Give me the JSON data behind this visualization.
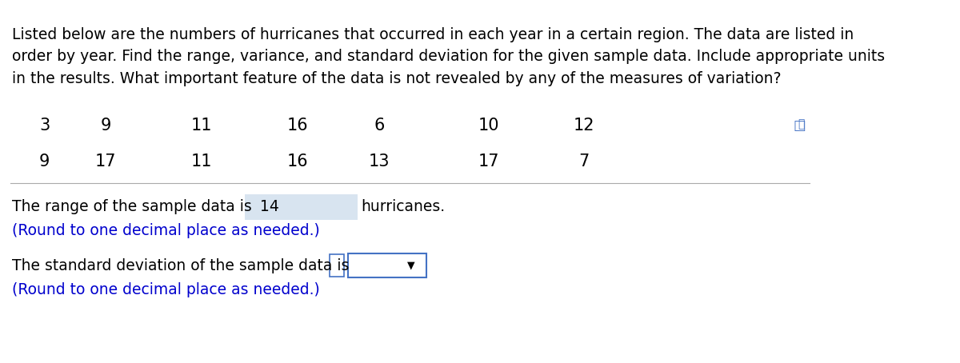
{
  "paragraph_text": "Listed below are the numbers of hurricanes that occurred in each year in a certain region. The data are listed in\norder by year. Find the range, variance, and standard deviation for the given sample data. Include appropriate units\nin the results. What important feature of the data is not revealed by any of the measures of variation?",
  "row1": [
    "3",
    "9",
    "11",
    "16",
    "6",
    "10",
    "12"
  ],
  "row2": [
    "9",
    "17",
    "11",
    "16",
    "13",
    "17",
    "7"
  ],
  "range_text_before": "The range of the sample data is ",
  "range_value": "14",
  "range_text_after": " hurricanes.",
  "range_note": "(Round to one decimal place as needed.)",
  "std_text_before": "The standard deviation of the sample data is",
  "std_note": "(Round to one decimal place as needed.)",
  "font_color_black": "#000000",
  "font_color_blue": "#0000CD",
  "highlight_color": "#D8E4F0",
  "box_border_blue": "#4472C4",
  "bg_color": "#FFFFFF",
  "separator_color": "#AAAAAA",
  "font_size_para": 13.5,
  "font_size_data": 15,
  "font_size_answer": 13.5
}
